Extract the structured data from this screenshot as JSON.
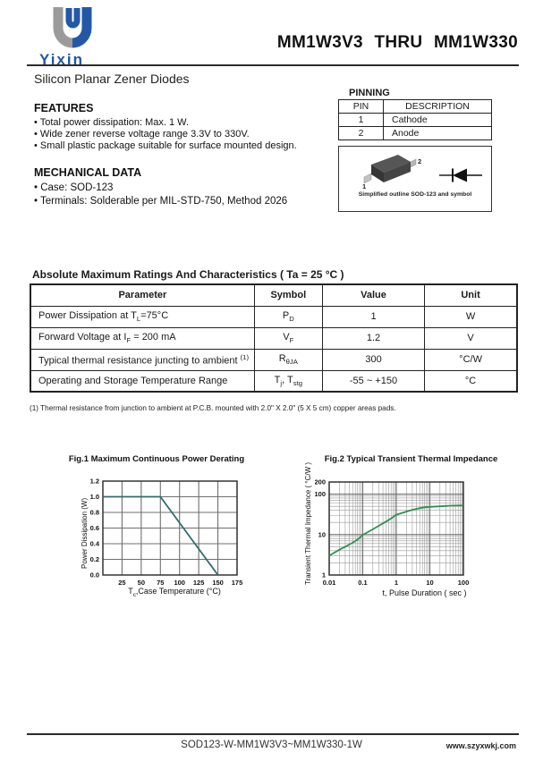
{
  "header": {
    "logo_text": "Yixin",
    "title": "MM1W3V3 THRU MM1W330",
    "subtitle": "Silicon Planar Zener Diodes",
    "logo_gray": "#9b9b9b",
    "logo_blue": "#2458a6"
  },
  "features": {
    "heading": "FEATURES",
    "items": [
      "Total power dissipation: Max. 1 W.",
      "Wide zener reverse voltage range 3.3V to 330V.",
      "Small plastic package suitable for surface mounted design."
    ]
  },
  "mechanical": {
    "heading": "MECHANICAL DATA",
    "items": [
      "Case: SOD-123",
      "Terminals: Solderable per MIL-STD-750, Method 2026"
    ]
  },
  "pinning": {
    "heading": "PINNING",
    "headers": [
      "PIN",
      "DESCRIPTION"
    ],
    "rows": [
      [
        "1",
        "Cathode"
      ],
      [
        "2",
        "Anode"
      ]
    ],
    "pin1": "1",
    "pin2": "2",
    "outline_caption": "Simplified outline SOD-123 and symbol"
  },
  "ratings": {
    "title": "Absolute Maximum Ratings And Characteristics  ( Ta = 25 °C )",
    "headers": [
      "Parameter",
      "Symbol",
      "Value",
      "Unit"
    ],
    "rows": [
      {
        "parameter_html": "Power Dissipation at T<sub>L</sub>=75°C",
        "symbol_html": "P<sub>D</sub>",
        "value": "1",
        "unit": "W"
      },
      {
        "parameter_html": "Forward Voltage at I<sub>F</sub> = 200 mA",
        "symbol_html": "V<sub>F</sub>",
        "value": "1.2",
        "unit": "V"
      },
      {
        "parameter_html": "Typical thermal resistance juncting to ambient <sup>(1)</sup>",
        "symbol_html": "R<sub>θJA</sub>",
        "value": "300",
        "unit": "°C/W"
      },
      {
        "parameter_html": "Operating and Storage Temperature Range",
        "symbol_html": "T<sub>j</sub>, T<sub>stg</sub>",
        "value": "-55 ~ +150",
        "unit": "°C"
      }
    ]
  },
  "footnote": "(1)  Thermal resistance from junction to ambient at P.C.B. mounted with 2.0\" X 2.0\" (5 X 5 cm) copper areas pads.",
  "chart_data": [
    {
      "type": "line",
      "title": "Fig.1  Maximum Continuous Power Derating",
      "xlabel_html": "T<sub>c</sub>,Case Temperature (°C)",
      "ylabel": "Power Dissipation (W)",
      "xscale": "linear",
      "yscale": "linear",
      "xlim": [
        0,
        175
      ],
      "ylim": [
        0,
        1.2
      ],
      "xticks": [
        25,
        50,
        75,
        100,
        125,
        150,
        175
      ],
      "xtick_labels": [
        "25",
        "50",
        "75",
        "100",
        "125",
        "150",
        "175"
      ],
      "yticks": [
        0,
        0.2,
        0.4,
        0.6,
        0.8,
        1.0,
        1.2
      ],
      "ytick_labels": [
        "0.0",
        "0.2",
        "0.4",
        "0.6",
        "0.8",
        "1.0",
        "1.2"
      ],
      "x": [
        0,
        75,
        150
      ],
      "y": [
        1.0,
        1.0,
        0.0
      ],
      "line_color": "#336b6b",
      "grid": true,
      "legend": "none"
    },
    {
      "type": "line",
      "title": "Fig.2  Typical Transient Thermal Impedance",
      "xlabel_html": "t, Pulse Duration ( sec )",
      "ylabel": "Transient Thermal Impedance ( °C/W )",
      "xscale": "log",
      "yscale": "log",
      "xlim": [
        0.01,
        100
      ],
      "ylim": [
        1,
        200
      ],
      "xticks": [
        0.01,
        0.1,
        1,
        10,
        100
      ],
      "xtick_labels": [
        "0.01",
        "0.1",
        "1",
        "10",
        "100"
      ],
      "yticks": [
        1,
        10,
        100,
        200
      ],
      "ytick_labels": [
        "1",
        "10",
        "100",
        "200"
      ],
      "x": [
        0.01,
        0.02,
        0.03,
        0.05,
        0.07,
        0.1,
        0.2,
        0.3,
        0.5,
        0.7,
        1,
        2,
        3,
        5,
        7,
        10,
        20,
        30,
        50,
        70,
        100
      ],
      "y": [
        3.0,
        4.2,
        5.0,
        6.3,
        7.5,
        9.8,
        13.5,
        16.5,
        21,
        25,
        31,
        37,
        41,
        45,
        47,
        48.5,
        50,
        51,
        52,
        52.5,
        53
      ],
      "line_color": "#2e9050",
      "grid": true,
      "legend": "none"
    }
  ],
  "footer": {
    "center": "SOD123-W-MM1W3V3~MM1W330-1W",
    "right": "www.szyxwkj.com"
  }
}
